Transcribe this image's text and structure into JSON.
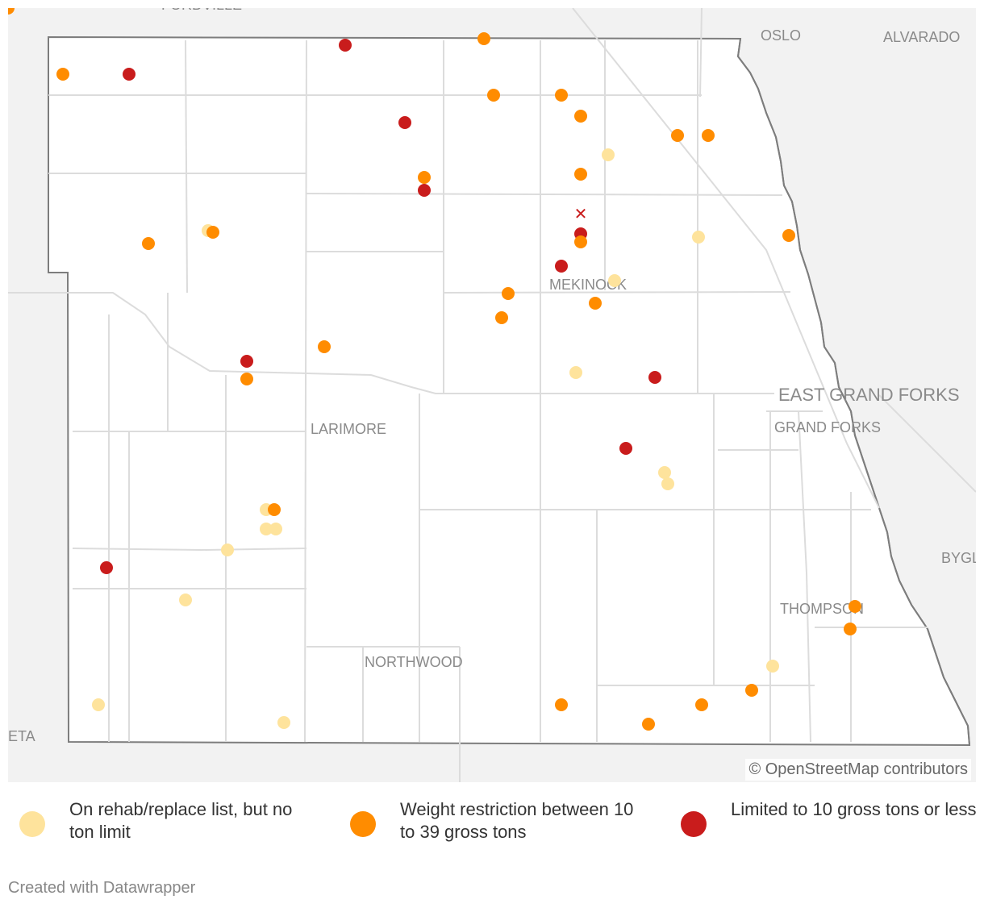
{
  "map": {
    "attribution": "© OpenStreetMap contributors",
    "marker_x_symbol": "✕",
    "colors": {
      "rehab": "#fee39c",
      "weight": "#ff8c00",
      "limited": "#c91c1c",
      "background": "#f2f2f2",
      "county": "#ffffff",
      "roads": "#dcdcdc",
      "border": "#7d7d7d"
    },
    "places": [
      "FORDVILLE",
      "OSLO",
      "ALVARADO",
      "MEKINOCK",
      "LARIMORE",
      "EAST GRAND FORKS",
      "GRAND FORKS",
      "BYGL",
      "THOMPSON",
      "NORTHWOOD",
      "ETA"
    ],
    "points": [
      {
        "category": "weight",
        "icon": "dot"
      },
      {
        "category": "limited",
        "icon": "dot"
      },
      {
        "category": "limited",
        "icon": "dot"
      },
      {
        "category": "weight",
        "icon": "dot"
      },
      {
        "category": "weight",
        "icon": "dot"
      },
      {
        "category": "weight",
        "icon": "dot"
      },
      {
        "category": "weight",
        "icon": "dot"
      },
      {
        "category": "limited",
        "icon": "dot"
      },
      {
        "category": "weight",
        "icon": "dot"
      },
      {
        "category": "weight",
        "icon": "dot"
      },
      {
        "category": "rehab",
        "icon": "dot"
      },
      {
        "category": "weight",
        "icon": "dot"
      },
      {
        "category": "weight",
        "icon": "dot"
      },
      {
        "category": "limited",
        "icon": "dot"
      },
      {
        "category": "limited",
        "icon": "x-mark"
      },
      {
        "category": "rehab",
        "icon": "dot"
      },
      {
        "category": "weight",
        "icon": "dot"
      },
      {
        "category": "weight",
        "icon": "dot"
      },
      {
        "category": "limited",
        "icon": "dot"
      },
      {
        "category": "weight",
        "icon": "dot"
      },
      {
        "category": "rehab",
        "icon": "dot"
      },
      {
        "category": "weight",
        "icon": "dot"
      },
      {
        "category": "limited",
        "icon": "dot"
      },
      {
        "category": "rehab",
        "icon": "dot"
      },
      {
        "category": "weight",
        "icon": "dot"
      },
      {
        "category": "weight",
        "icon": "dot"
      },
      {
        "category": "weight",
        "icon": "dot"
      },
      {
        "category": "weight",
        "icon": "dot"
      },
      {
        "category": "limited",
        "icon": "dot"
      },
      {
        "category": "weight",
        "icon": "dot"
      },
      {
        "category": "rehab",
        "icon": "dot"
      },
      {
        "category": "limited",
        "icon": "dot"
      },
      {
        "category": "limited",
        "icon": "dot"
      },
      {
        "category": "rehab",
        "icon": "dot"
      },
      {
        "category": "rehab",
        "icon": "dot"
      },
      {
        "category": "rehab",
        "icon": "dot"
      },
      {
        "category": "weight",
        "icon": "dot"
      },
      {
        "category": "rehab",
        "icon": "dot"
      },
      {
        "category": "rehab",
        "icon": "dot"
      },
      {
        "category": "rehab",
        "icon": "dot"
      },
      {
        "category": "limited",
        "icon": "dot"
      },
      {
        "category": "rehab",
        "icon": "dot"
      },
      {
        "category": "rehab",
        "icon": "dot"
      },
      {
        "category": "rehab",
        "icon": "dot"
      },
      {
        "category": "weight",
        "icon": "dot"
      },
      {
        "category": "weight",
        "icon": "dot"
      },
      {
        "category": "weight",
        "icon": "dot"
      },
      {
        "category": "weight",
        "icon": "dot"
      },
      {
        "category": "weight",
        "icon": "dot"
      },
      {
        "category": "rehab",
        "icon": "dot"
      },
      {
        "category": "weight",
        "icon": "dot"
      },
      {
        "category": "weight",
        "icon": "dot"
      }
    ]
  },
  "legend": {
    "rehab": "On rehab/replace list, but no ton limit",
    "weight": "Weight restriction between 10 to 39 gross tons",
    "limited": "Limited to 10 gross tons or less"
  },
  "footer": "Created with Datawrapper"
}
